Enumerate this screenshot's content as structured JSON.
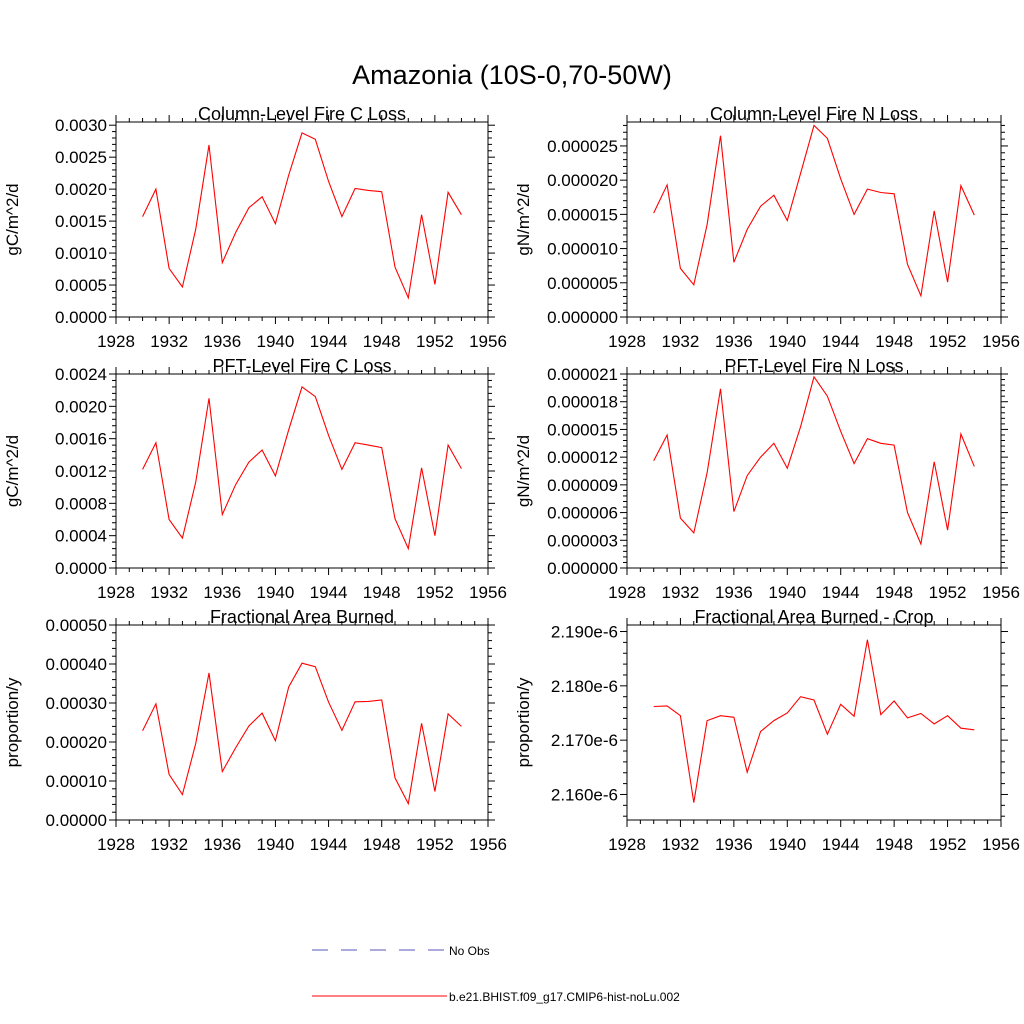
{
  "figure_title": "Amazonia (10S-0,70-50W)",
  "legend": {
    "entries": [
      {
        "label": "No Obs",
        "color": "#5555bb",
        "style": "dashed"
      },
      {
        "label": "b.e21.BHIST.f09_g17.CMIP6-hist-noLu.002",
        "color": "#ff0000",
        "style": "solid"
      }
    ]
  },
  "chart_data": [
    {
      "type": "line",
      "title": "Column-Level Fire C Loss",
      "ylabel": "gC/m^2/d",
      "xlim": [
        1928,
        1956
      ],
      "ylim": [
        0,
        0.00305
      ],
      "xticks": [
        1928,
        1932,
        1936,
        1940,
        1944,
        1948,
        1952,
        1956
      ],
      "xtick_labels": [
        "1928",
        "1932",
        "1936",
        "1940",
        "1944",
        "1948",
        "1952",
        "1956"
      ],
      "yticks": [
        0,
        0.0005,
        0.001,
        0.0015,
        0.002,
        0.0025,
        0.003
      ],
      "ytick_labels": [
        "0.0000",
        "0.0005",
        "0.0010",
        "0.0015",
        "0.0020",
        "0.0025",
        "0.0030"
      ],
      "x": [
        1930,
        1931,
        1932,
        1933,
        1934,
        1935,
        1936,
        1937,
        1938,
        1939,
        1940,
        1941,
        1942,
        1943,
        1944,
        1945,
        1946,
        1947,
        1948,
        1949,
        1950,
        1951,
        1952,
        1953,
        1954
      ],
      "series": [
        {
          "color": "#ff0000",
          "values": [
            0.00157,
            0.002,
            0.00076,
            0.00047,
            0.00137,
            0.00269,
            0.00085,
            0.00132,
            0.00171,
            0.00188,
            0.00146,
            0.00222,
            0.00288,
            0.00278,
            0.00212,
            0.00157,
            0.00201,
            0.00198,
            0.00196,
            0.00078,
            0.0003,
            0.0016,
            0.00051,
            0.00195,
            0.0016
          ]
        }
      ]
    },
    {
      "type": "line",
      "title": "Column-Level Fire N Loss",
      "ylabel": "gN/m^2/d",
      "xlim": [
        1928,
        1956
      ],
      "ylim": [
        0,
        2.85e-05
      ],
      "xticks": [
        1928,
        1932,
        1936,
        1940,
        1944,
        1948,
        1952,
        1956
      ],
      "xtick_labels": [
        "1928",
        "1932",
        "1936",
        "1940",
        "1944",
        "1948",
        "1952",
        "1956"
      ],
      "yticks": [
        0,
        5e-06,
        1e-05,
        1.5e-05,
        2e-05,
        2.5e-05
      ],
      "ytick_labels": [
        "0.000000",
        "0.000005",
        "0.000010",
        "0.000015",
        "0.000020",
        "0.000025"
      ],
      "x": [
        1930,
        1931,
        1932,
        1933,
        1934,
        1935,
        1936,
        1937,
        1938,
        1939,
        1940,
        1941,
        1942,
        1943,
        1944,
        1945,
        1946,
        1947,
        1948,
        1949,
        1950,
        1951,
        1952,
        1953,
        1954
      ],
      "series": [
        {
          "color": "#ff0000",
          "values": [
            1.52e-05,
            1.93e-05,
            7.1e-06,
            4.7e-06,
            1.35e-05,
            2.65e-05,
            8e-06,
            1.28e-05,
            1.62e-05,
            1.78e-05,
            1.41e-05,
            2.1e-05,
            2.8e-05,
            2.61e-05,
            2.02e-05,
            1.5e-05,
            1.87e-05,
            1.82e-05,
            1.8e-05,
            7.7e-06,
            3.1e-06,
            1.55e-05,
            5.1e-06,
            1.92e-05,
            1.49e-05
          ]
        }
      ]
    },
    {
      "type": "line",
      "title": "PFT-Level Fire C Loss",
      "ylabel": "gC/m^2/d",
      "xlim": [
        1928,
        1956
      ],
      "ylim": [
        0,
        0.0024
      ],
      "xticks": [
        1928,
        1932,
        1936,
        1940,
        1944,
        1948,
        1952,
        1956
      ],
      "xtick_labels": [
        "1928",
        "1932",
        "1936",
        "1940",
        "1944",
        "1948",
        "1952",
        "1956"
      ],
      "yticks": [
        0,
        0.0004,
        0.0008,
        0.0012,
        0.0016,
        0.002,
        0.0024
      ],
      "ytick_labels": [
        "0.0000",
        "0.0004",
        "0.0008",
        "0.0012",
        "0.0016",
        "0.0020",
        "0.0024"
      ],
      "x": [
        1930,
        1931,
        1932,
        1933,
        1934,
        1935,
        1936,
        1937,
        1938,
        1939,
        1940,
        1941,
        1942,
        1943,
        1944,
        1945,
        1946,
        1947,
        1948,
        1949,
        1950,
        1951,
        1952,
        1953,
        1954
      ],
      "series": [
        {
          "color": "#ff0000",
          "values": [
            0.00122,
            0.00155,
            0.0006,
            0.00037,
            0.00106,
            0.0021,
            0.00066,
            0.00103,
            0.00131,
            0.00146,
            0.00114,
            0.00171,
            0.00224,
            0.00212,
            0.00164,
            0.00122,
            0.00155,
            0.00152,
            0.00149,
            0.00061,
            0.00024,
            0.00124,
            0.0004,
            0.00152,
            0.00123
          ]
        }
      ]
    },
    {
      "type": "line",
      "title": "PFT-Level Fire N Loss",
      "ylabel": "gN/m^2/d",
      "xlim": [
        1928,
        1956
      ],
      "ylim": [
        0,
        2.1e-05
      ],
      "xticks": [
        1928,
        1932,
        1936,
        1940,
        1944,
        1948,
        1952,
        1956
      ],
      "xtick_labels": [
        "1928",
        "1932",
        "1936",
        "1940",
        "1944",
        "1948",
        "1952",
        "1956"
      ],
      "yticks": [
        0,
        3e-06,
        6e-06,
        9e-06,
        1.2e-05,
        1.5e-05,
        1.8e-05,
        2.1e-05
      ],
      "ytick_labels": [
        "0.000000",
        "0.000003",
        "0.000006",
        "0.000009",
        "0.000012",
        "0.000015",
        "0.000018",
        "0.000021"
      ],
      "x": [
        1930,
        1931,
        1932,
        1933,
        1934,
        1935,
        1936,
        1937,
        1938,
        1939,
        1940,
        1941,
        1942,
        1943,
        1944,
        1945,
        1946,
        1947,
        1948,
        1949,
        1950,
        1951,
        1952,
        1953,
        1954
      ],
      "series": [
        {
          "color": "#ff0000",
          "values": [
            1.16e-05,
            1.44e-05,
            5.4e-06,
            3.8e-06,
            1.03e-05,
            1.94e-05,
            6.1e-06,
            1e-05,
            1.2e-05,
            1.35e-05,
            1.08e-05,
            1.53e-05,
            2.07e-05,
            1.86e-05,
            1.48e-05,
            1.13e-05,
            1.4e-05,
            1.35e-05,
            1.33e-05,
            6e-06,
            2.6e-06,
            1.15e-05,
            4.1e-06,
            1.45e-05,
            1.1e-05
          ]
        }
      ]
    },
    {
      "type": "line",
      "title": "Fractional Area Burned",
      "ylabel": "proportion/y",
      "xlim": [
        1928,
        1956
      ],
      "ylim": [
        0,
        0.0005
      ],
      "xticks": [
        1928,
        1932,
        1936,
        1940,
        1944,
        1948,
        1952,
        1956
      ],
      "xtick_labels": [
        "1928",
        "1932",
        "1936",
        "1940",
        "1944",
        "1948",
        "1952",
        "1956"
      ],
      "yticks": [
        0,
        0.0001,
        0.0002,
        0.0003,
        0.0004,
        0.0005
      ],
      "ytick_labels": [
        "0.00000",
        "0.00010",
        "0.00020",
        "0.00030",
        "0.00040",
        "0.00050"
      ],
      "x": [
        1930,
        1931,
        1932,
        1933,
        1934,
        1935,
        1936,
        1937,
        1938,
        1939,
        1940,
        1941,
        1942,
        1943,
        1944,
        1945,
        1946,
        1947,
        1948,
        1949,
        1950,
        1951,
        1952,
        1953,
        1954
      ],
      "series": [
        {
          "color": "#ff0000",
          "values": [
            0.000229,
            0.000298,
            0.000117,
            6.5e-05,
            0.000196,
            0.000377,
            0.000124,
            0.000185,
            0.000241,
            0.000274,
            0.000203,
            0.000341,
            0.000402,
            0.000393,
            0.000302,
            0.00023,
            0.000303,
            0.000304,
            0.000308,
            0.000108,
            4.2e-05,
            0.000248,
            7.3e-05,
            0.000272,
            0.00024
          ]
        }
      ]
    },
    {
      "type": "line",
      "title": "Fractional Area Burned - Crop",
      "ylabel": "proportion/y",
      "xlim": [
        1928,
        1956
      ],
      "ylim": [
        2.1553e-06,
        2.1912e-06
      ],
      "xticks": [
        1928,
        1932,
        1936,
        1940,
        1944,
        1948,
        1952,
        1956
      ],
      "xtick_labels": [
        "1928",
        "1932",
        "1936",
        "1940",
        "1944",
        "1948",
        "1952",
        "1956"
      ],
      "yticks": [
        2.16e-06,
        2.17e-06,
        2.18e-06,
        2.19e-06
      ],
      "ytick_labels": [
        "2.160e-6",
        "2.170e-6",
        "2.180e-6",
        "2.190e-6"
      ],
      "x": [
        1930,
        1931,
        1932,
        1933,
        1934,
        1935,
        1936,
        1937,
        1938,
        1939,
        1940,
        1941,
        1942,
        1943,
        1944,
        1945,
        1946,
        1947,
        1948,
        1949,
        1950,
        1951,
        1952,
        1953,
        1954
      ],
      "series": [
        {
          "color": "#ff0000",
          "values": [
            2.1762e-06,
            2.1763e-06,
            2.1745e-06,
            2.1585e-06,
            2.1736e-06,
            2.1745e-06,
            2.1742e-06,
            2.1641e-06,
            2.1716e-06,
            2.1736e-06,
            2.175e-06,
            2.178e-06,
            2.1774e-06,
            2.1711e-06,
            2.1766e-06,
            2.1744e-06,
            2.1885e-06,
            2.1747e-06,
            2.1772e-06,
            2.1741e-06,
            2.1749e-06,
            2.173e-06,
            2.1745e-06,
            2.1722e-06,
            2.1719e-06
          ]
        }
      ]
    }
  ]
}
